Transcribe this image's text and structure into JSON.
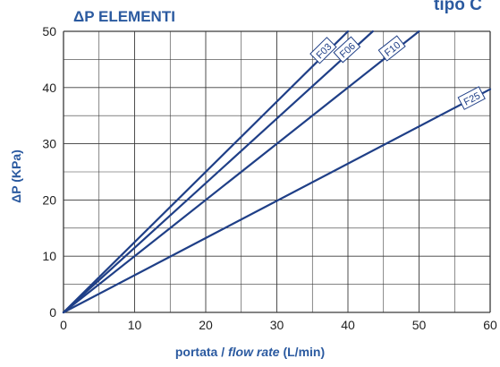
{
  "chart_data": {
    "type": "line",
    "title": "ΔP ELEMENTI",
    "title_secondary": "tipo C",
    "xlabel_prefix": "portata / ",
    "xlabel_italic": "flow rate",
    "xlabel_unit": " (L/min)",
    "ylabel": "ΔP  (KPa)",
    "xlim": [
      0,
      60
    ],
    "ylim": [
      0,
      50
    ],
    "x_ticks": [
      0,
      10,
      20,
      30,
      40,
      50,
      60
    ],
    "y_ticks": [
      0,
      10,
      20,
      30,
      40,
      50
    ],
    "grid": true,
    "series": [
      {
        "name": "F03",
        "x": [
          0,
          40
        ],
        "y": [
          0,
          50
        ]
      },
      {
        "name": "F06",
        "x": [
          0,
          43.5
        ],
        "y": [
          0,
          50
        ]
      },
      {
        "name": "F10",
        "x": [
          0,
          50
        ],
        "y": [
          0,
          50
        ]
      },
      {
        "name": "F25",
        "x": [
          0,
          60
        ],
        "y": [
          0,
          39.7
        ]
      }
    ],
    "colors": {
      "line": "#1f3f87",
      "text": "#2b5aa0",
      "grid": "#3a3a3a",
      "tick": "#222222"
    }
  }
}
